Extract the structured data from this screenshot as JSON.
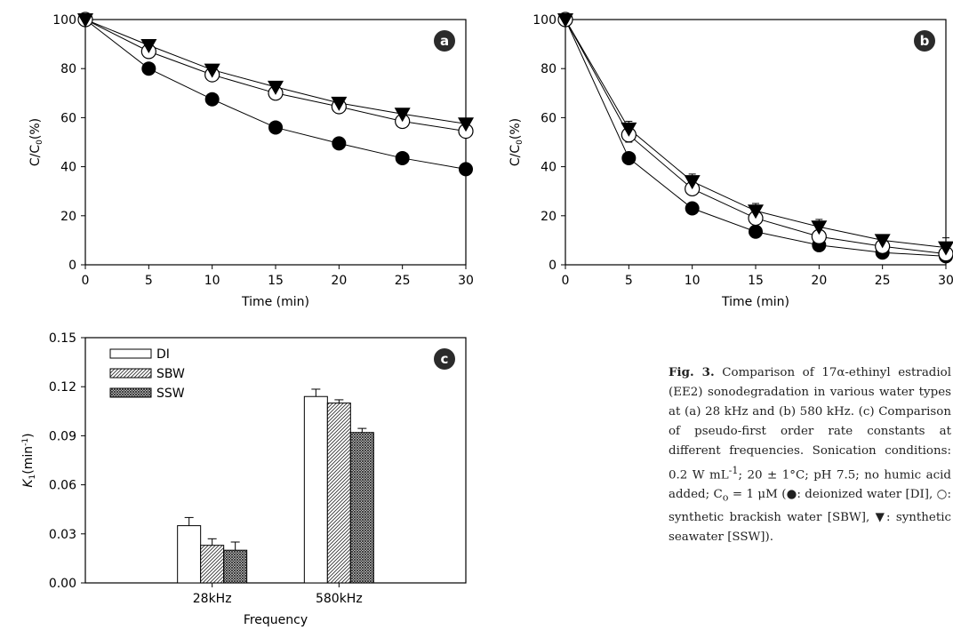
{
  "chart_data": [
    {
      "panel": "a",
      "type": "line",
      "xlabel": "Time (min)",
      "ylabel": "C/C",
      "ylabel_sub": "0",
      "ylabel_unit": "(%)",
      "xlim": [
        0,
        30
      ],
      "ylim": [
        0,
        100
      ],
      "xticks": [
        "0",
        "5",
        "10",
        "15",
        "20",
        "25",
        "30"
      ],
      "yticks": [
        "0",
        "20",
        "40",
        "60",
        "80",
        "100"
      ],
      "grid": false,
      "x": [
        0,
        5,
        10,
        15,
        20,
        25,
        30
      ],
      "series": [
        {
          "marker": "filled-circle",
          "values": [
            100,
            80,
            67.5,
            56,
            49.5,
            43.5,
            39
          ],
          "errors": [
            1,
            1.5,
            2,
            2,
            2,
            2,
            2
          ]
        },
        {
          "marker": "open-circle",
          "values": [
            100,
            87,
            77.5,
            70,
            64.5,
            58.5,
            54.5
          ],
          "errors": [
            1,
            1,
            1.5,
            1.5,
            1.5,
            1.5,
            1.5
          ]
        },
        {
          "marker": "filled-triangle",
          "values": [
            100,
            89.5,
            79.5,
            72.5,
            66,
            61.5,
            57.5
          ],
          "errors": [
            1,
            1,
            1.5,
            1.5,
            2,
            2,
            2
          ]
        }
      ]
    },
    {
      "panel": "b",
      "type": "line",
      "xlabel": "Time (min)",
      "ylabel": "C/C",
      "ylabel_sub": "0",
      "ylabel_unit": "(%)",
      "xlim": [
        0,
        30
      ],
      "ylim": [
        0,
        100
      ],
      "xticks": [
        "0",
        "5",
        "10",
        "15",
        "20",
        "25",
        "30"
      ],
      "yticks": [
        "0",
        "20",
        "40",
        "60",
        "80",
        "100"
      ],
      "grid": false,
      "x": [
        0,
        5,
        10,
        15,
        20,
        25,
        30
      ],
      "series": [
        {
          "marker": "filled-circle",
          "values": [
            100,
            43.5,
            23,
            13.5,
            8,
            5,
            3.5
          ],
          "errors": [
            1,
            1,
            1,
            1,
            1,
            1,
            1
          ]
        },
        {
          "marker": "open-circle",
          "values": [
            100,
            53,
            31,
            19,
            11.5,
            7.5,
            4.5
          ],
          "errors": [
            1,
            3,
            2,
            2,
            1.5,
            1.5,
            1.5
          ]
        },
        {
          "marker": "filled-triangle",
          "values": [
            100,
            55.5,
            34,
            22,
            15.5,
            10,
            7
          ],
          "errors": [
            1,
            3,
            3,
            3,
            3,
            2,
            4
          ]
        }
      ]
    },
    {
      "panel": "c",
      "type": "bar",
      "xlabel": "Frequency",
      "ylabel": "K",
      "ylabel_sub": "1",
      "ylabel_unit": "(min",
      "ylabel_sup": "-1",
      "ylabel_close": ")",
      "categories": [
        "28kHz",
        "580kHz"
      ],
      "ylim": [
        0,
        0.15
      ],
      "yticks": [
        "0.00",
        "0.03",
        "0.06",
        "0.09",
        "0.12",
        "0.15"
      ],
      "legend_position": "top-left",
      "grid": false,
      "series": [
        {
          "name": "DI",
          "fill": "open",
          "values": [
            0.035,
            0.114
          ],
          "errors": [
            0.005,
            0.0045
          ]
        },
        {
          "name": "SBW",
          "fill": "hatch",
          "values": [
            0.023,
            0.11
          ],
          "errors": [
            0.004,
            0.002
          ]
        },
        {
          "name": "SSW",
          "fill": "crosshatch",
          "values": [
            0.02,
            0.092
          ],
          "errors": [
            0.005,
            0.0025
          ]
        }
      ]
    }
  ],
  "caption": {
    "label": "Fig. 3.",
    "text": " Comparison of 17α-ethinyl estradiol (EE2) sonodegradation in various water types at (a) 28 kHz and (b) 580 kHz. (c) Comparison of pseudo-first order rate constants at different frequencies. Sonication conditions: 0.2 W mL",
    "sup": "-1",
    "text2": "; 20 ± 1°C; pH 7.5; no humic acid added; C",
    "sub": "o",
    "text3": " = 1 μM (●: deionized water [DI], ○: synthetic brackish water [SBW], ▼: synthetic seawater [SSW])."
  }
}
